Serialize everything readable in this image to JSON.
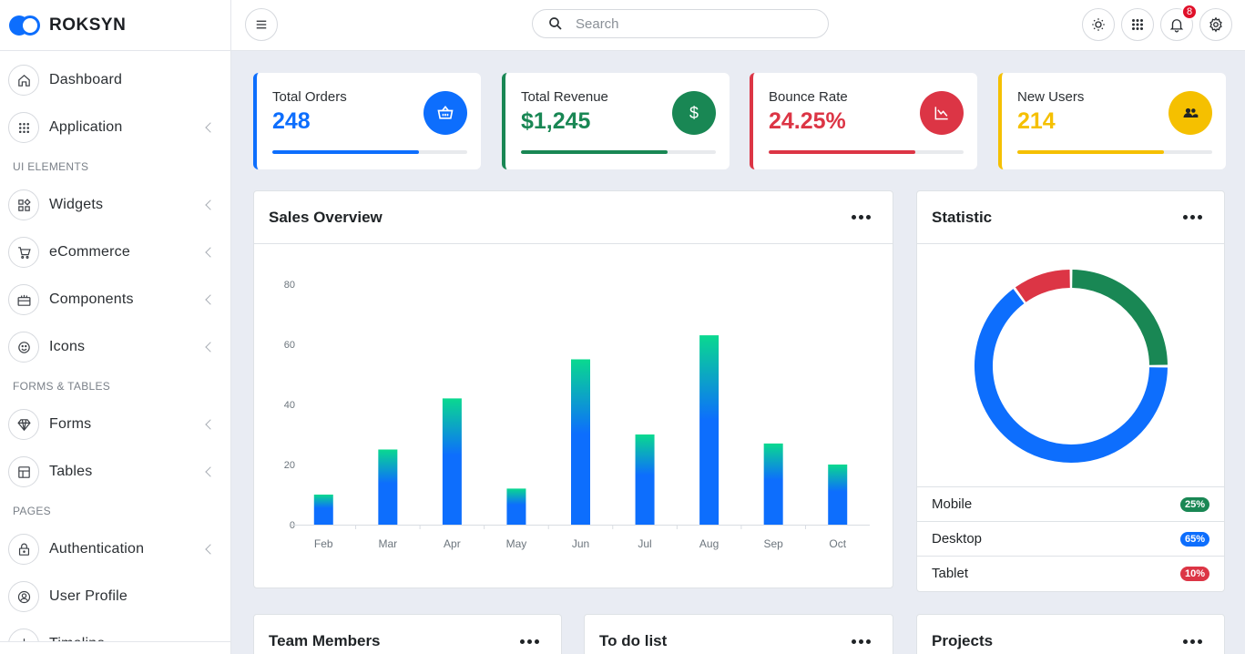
{
  "brand": {
    "name": "ROKSYN"
  },
  "sidebar": {
    "items": [
      {
        "type": "link",
        "label": "Dashboard",
        "icon": "home-icon",
        "chevron": false
      },
      {
        "type": "link",
        "label": "Application",
        "icon": "grid-icon",
        "chevron": true
      },
      {
        "type": "header",
        "label": "UI ELEMENTS"
      },
      {
        "type": "link",
        "label": "Widgets",
        "icon": "widgets-icon",
        "chevron": true
      },
      {
        "type": "link",
        "label": "eCommerce",
        "icon": "cart-icon",
        "chevron": true
      },
      {
        "type": "link",
        "label": "Components",
        "icon": "components-icon",
        "chevron": true
      },
      {
        "type": "link",
        "label": "Icons",
        "icon": "smile-icon",
        "chevron": true
      },
      {
        "type": "header",
        "label": "FORMS & TABLES"
      },
      {
        "type": "link",
        "label": "Forms",
        "icon": "diamond-icon",
        "chevron": true
      },
      {
        "type": "link",
        "label": "Tables",
        "icon": "table-icon",
        "chevron": true
      },
      {
        "type": "header",
        "label": "PAGES"
      },
      {
        "type": "link",
        "label": "Authentication",
        "icon": "lock-icon",
        "chevron": true
      },
      {
        "type": "link",
        "label": "User Profile",
        "icon": "user-icon",
        "chevron": false
      },
      {
        "type": "link",
        "label": "Timeline",
        "icon": "timeline-icon",
        "chevron": false
      }
    ]
  },
  "topbar": {
    "search_placeholder": "Search",
    "notification_count": "8"
  },
  "stats": [
    {
      "label": "Total Orders",
      "value": "248",
      "color": "#0d6efd",
      "icon": "basket-icon",
      "progress": 0.75
    },
    {
      "label": "Total Revenue",
      "value": "$1,245",
      "color": "#198754",
      "icon": "dollar-icon",
      "progress": 0.75
    },
    {
      "label": "Bounce Rate",
      "value": "24.25%",
      "color": "#dc3545",
      "icon": "chart-down-icon",
      "progress": 0.75
    },
    {
      "label": "New Users",
      "value": "214",
      "color": "#f5c000",
      "icon": "users-icon",
      "progress": 0.75
    }
  ],
  "sales": {
    "title": "Sales Overview"
  },
  "statistic": {
    "title": "Statistic",
    "items": [
      {
        "label": "Mobile",
        "badge": "25%",
        "color": "#198754"
      },
      {
        "label": "Desktop",
        "badge": "65%",
        "color": "#0d6efd"
      },
      {
        "label": "Tablet",
        "badge": "10%",
        "color": "#dc3545"
      }
    ]
  },
  "bottom_cards": [
    "Team Members",
    "To do list",
    "Projects"
  ],
  "chart_data": {
    "type": "bar",
    "categories": [
      "Feb",
      "Mar",
      "Apr",
      "May",
      "Jun",
      "Jul",
      "Aug",
      "Sep",
      "Oct"
    ],
    "values": [
      10,
      25,
      42,
      12,
      55,
      30,
      63,
      27,
      20
    ],
    "yticks": [
      0,
      20,
      40,
      60,
      80
    ],
    "ylim": [
      0,
      80
    ],
    "xlabel": "",
    "ylabel": "",
    "grid": false,
    "colors": {
      "bar_bottom": "#0d6efd",
      "bar_top": "#0ad98f"
    }
  },
  "donut_data": {
    "type": "pie",
    "categories": [
      "Mobile",
      "Desktop",
      "Tablet"
    ],
    "values": [
      25,
      65,
      10
    ],
    "colors": [
      "#198754",
      "#0d6efd",
      "#dc3545"
    ]
  }
}
